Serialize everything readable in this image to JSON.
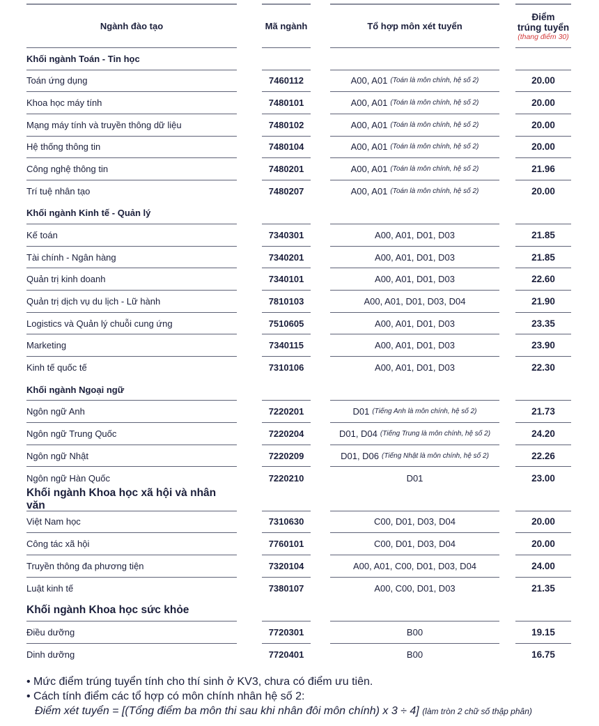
{
  "header": {
    "col1": "Ngành đào tạo",
    "col2": "Mã ngành",
    "col3": "Tổ hợp môn xét tuyển",
    "col4_line1": "Điểm",
    "col4_line2": "trúng tuyển",
    "col4_note": "(thang điểm 30)"
  },
  "colors": {
    "text": "#1b1f3b",
    "note_red": "#d23a3a",
    "rule": "#5d6176"
  },
  "rows": [
    {
      "type": "section",
      "name": "Khối ngành Toán - Tin học"
    },
    {
      "name": "Toán ứng dụng",
      "code": "7460112",
      "subjects": "A00, A01",
      "note": "(Toán là môn chính, hệ số 2)",
      "score": "20.00"
    },
    {
      "name": "Khoa học máy tính",
      "code": "7480101",
      "subjects": "A00, A01",
      "note": "(Toán là môn chính, hệ số 2)",
      "score": "20.00"
    },
    {
      "name": "Mạng máy tính và truyền thông dữ liệu",
      "code": "7480102",
      "subjects": "A00, A01",
      "note": "(Toán là môn chính, hệ số 2)",
      "score": "20.00"
    },
    {
      "name": "Hệ thống thông tin",
      "code": "7480104",
      "subjects": "A00, A01",
      "note": "(Toán là môn chính, hệ số 2)",
      "score": "20.00"
    },
    {
      "name": "Công nghệ thông tin",
      "code": "7480201",
      "subjects": "A00, A01",
      "note": "(Toán là môn chính, hệ số 2)",
      "score": "21.96"
    },
    {
      "name": "Trí tuệ nhân tạo",
      "code": "7480207",
      "subjects": "A00, A01",
      "note": "(Toán là môn chính, hệ số 2)",
      "score": "20.00",
      "last": true
    },
    {
      "type": "section",
      "name": "Khối ngành Kinh tế - Quản lý"
    },
    {
      "name": "Kế toán",
      "code": "7340301",
      "subjects": "A00, A01, D01, D03",
      "score": "21.85"
    },
    {
      "name": "Tài chính - Ngân hàng",
      "code": "7340201",
      "subjects": "A00, A01, D01, D03",
      "score": "21.85"
    },
    {
      "name": "Quản trị kinh doanh",
      "code": "7340101",
      "subjects": "A00, A01, D01, D03",
      "score": "22.60"
    },
    {
      "name": "Quản trị dịch vụ du lịch - Lữ hành",
      "code": "7810103",
      "subjects": "A00, A01, D01, D03, D04",
      "score": "21.90"
    },
    {
      "name": "Logistics và Quản lý chuỗi cung ứng",
      "code": "7510605",
      "subjects": "A00, A01, D01, D03",
      "score": "23.35"
    },
    {
      "name": "Marketing",
      "code": "7340115",
      "subjects": "A00, A01, D01, D03",
      "score": "23.90"
    },
    {
      "name": "Kinh tế quốc tế",
      "code": "7310106",
      "subjects": "A00, A01, D01, D03",
      "score": "22.30",
      "last": true
    },
    {
      "type": "section",
      "name": "Khối ngành Ngoại ngữ"
    },
    {
      "name": "Ngôn ngữ Anh",
      "code": "7220201",
      "subjects": "D01",
      "note": "(Tiếng Anh là môn chính, hệ số 2)",
      "score": "21.73"
    },
    {
      "name": "Ngôn ngữ Trung Quốc",
      "code": "7220204",
      "subjects": "D01, D04",
      "note": "(Tiếng Trung là môn chính, hệ số 2)",
      "score": "24.20"
    },
    {
      "name": "Ngôn ngữ Nhật",
      "code": "7220209",
      "subjects": "D01, D06",
      "note": "(Tiếng Nhật là môn chính, hệ số 2)",
      "score": "22.26"
    },
    {
      "name": "Ngôn ngữ Hàn Quốc",
      "code": "7220210",
      "subjects": "D01",
      "score": "23.00",
      "last": true
    },
    {
      "type": "section",
      "big": true,
      "name": "Khối ngành Khoa học xã hội và nhân văn"
    },
    {
      "name": "Việt Nam học",
      "code": "7310630",
      "subjects": "C00, D01, D03, D04",
      "score": "20.00"
    },
    {
      "name": "Công tác xã hội",
      "code": "7760101",
      "subjects": "C00, D01, D03, D04",
      "score": "20.00"
    },
    {
      "name": "Truyền thông đa phương tiện",
      "code": "7320104",
      "subjects": "A00, A01, C00, D01, D03, D04",
      "score": "24.00"
    },
    {
      "name": "Luật kinh tế",
      "code": "7380107",
      "subjects": "A00, C00, D01, D03",
      "score": "21.35",
      "last": true
    },
    {
      "type": "section",
      "big": true,
      "name": "Khối ngành Khoa học sức khỏe"
    },
    {
      "name": "Điều dưỡng",
      "code": "7720301",
      "subjects": "B00",
      "score": "19.15"
    },
    {
      "name": "Dinh dưỡng",
      "code": "7720401",
      "subjects": "B00",
      "score": "16.75",
      "last": true
    }
  ],
  "footnotes": {
    "line1": "• Mức điểm trúng tuyển tính cho thí sinh ở KV3, chưa có điểm ưu tiên.",
    "line2": "• Cách tính điểm các tổ hợp có môn chính nhân hệ số 2:",
    "formula": "Điểm xét tuyển = [(Tổng điểm ba môn thi sau khi nhân đôi môn chính) x 3 ÷ 4]",
    "formula_note": "(làm tròn 2 chữ số thập phân)"
  }
}
